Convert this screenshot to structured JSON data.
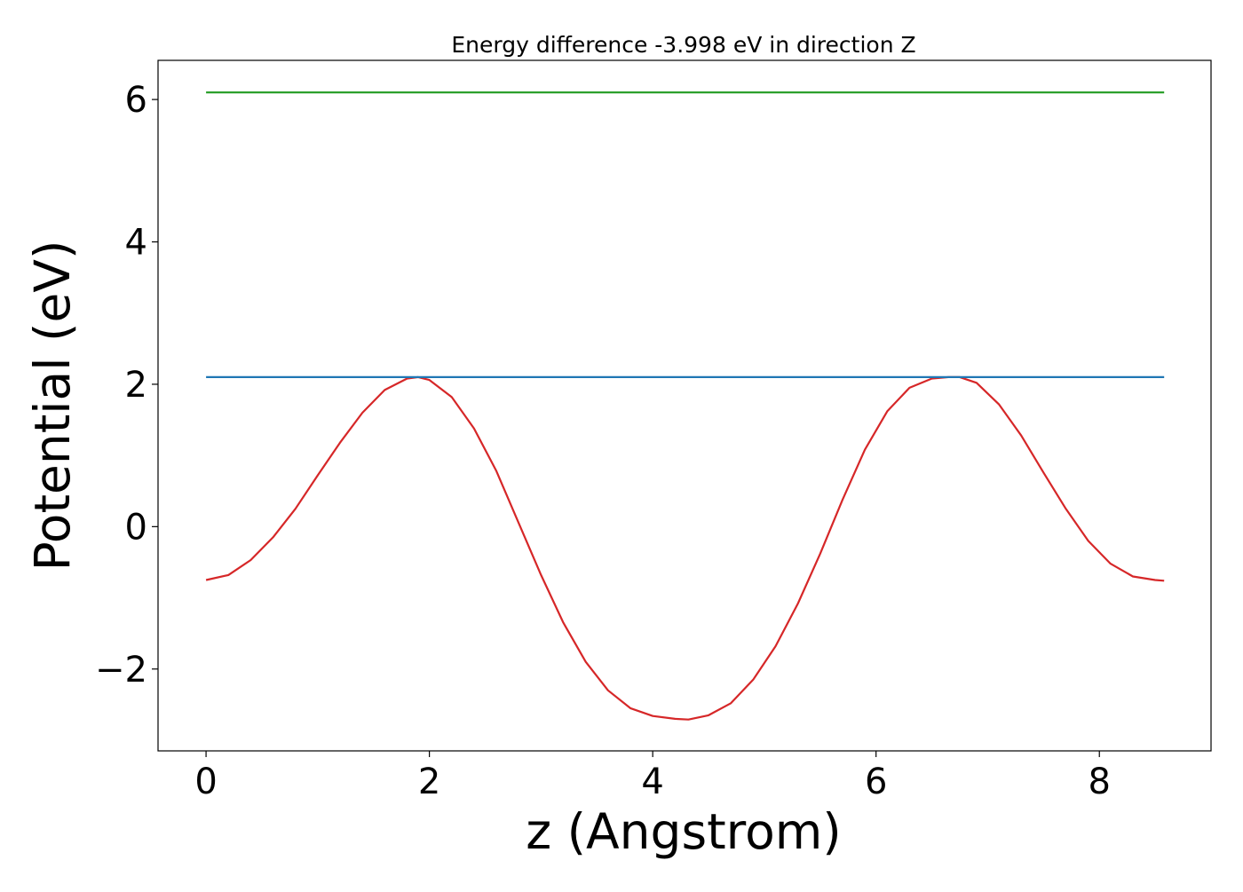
{
  "chart_data": {
    "type": "line",
    "title": "Energy difference -3.998 eV in direction Z",
    "xlabel": "z (Angstrom)",
    "ylabel": "Potential (eV)",
    "xlim": [
      -0.43,
      9.0
    ],
    "ylim": [
      -3.15,
      6.55
    ],
    "grid": false,
    "x_ticks": [
      {
        "value": 0,
        "label": "0"
      },
      {
        "value": 2,
        "label": "2"
      },
      {
        "value": 4,
        "label": "4"
      },
      {
        "value": 6,
        "label": "6"
      },
      {
        "value": 8,
        "label": "8"
      }
    ],
    "y_ticks": [
      {
        "value": -2,
        "label": "−2"
      },
      {
        "value": 0,
        "label": "0"
      },
      {
        "value": 2,
        "label": "2"
      },
      {
        "value": 4,
        "label": "4"
      },
      {
        "value": 6,
        "label": "6"
      }
    ],
    "series": [
      {
        "color": "#d62728",
        "x": [
          0.0,
          0.2,
          0.4,
          0.6,
          0.8,
          1.0,
          1.2,
          1.4,
          1.6,
          1.8,
          1.9,
          2.0,
          2.2,
          2.4,
          2.6,
          2.8,
          3.0,
          3.2,
          3.4,
          3.6,
          3.8,
          4.0,
          4.2,
          4.32,
          4.5,
          4.7,
          4.9,
          5.1,
          5.3,
          5.5,
          5.7,
          5.9,
          6.1,
          6.3,
          6.5,
          6.65,
          6.75,
          6.9,
          7.1,
          7.3,
          7.5,
          7.7,
          7.9,
          8.1,
          8.3,
          8.5,
          8.58
        ],
        "y": [
          -0.75,
          -0.68,
          -0.47,
          -0.15,
          0.25,
          0.72,
          1.18,
          1.6,
          1.92,
          2.08,
          2.1,
          2.06,
          1.82,
          1.38,
          0.78,
          0.05,
          -0.68,
          -1.35,
          -1.9,
          -2.3,
          -2.55,
          -2.66,
          -2.7,
          -2.71,
          -2.65,
          -2.48,
          -2.15,
          -1.68,
          -1.08,
          -0.38,
          0.38,
          1.08,
          1.62,
          1.95,
          2.08,
          2.1,
          2.1,
          2.02,
          1.72,
          1.28,
          0.76,
          0.25,
          -0.2,
          -0.52,
          -0.7,
          -0.75,
          -0.76
        ]
      },
      {
        "color": "#1f77b4",
        "x": [
          0.0,
          8.58
        ],
        "y": [
          2.1,
          2.1
        ]
      },
      {
        "color": "#2ca02c",
        "x": [
          0.0,
          8.58
        ],
        "y": [
          6.1,
          6.1
        ]
      }
    ]
  }
}
